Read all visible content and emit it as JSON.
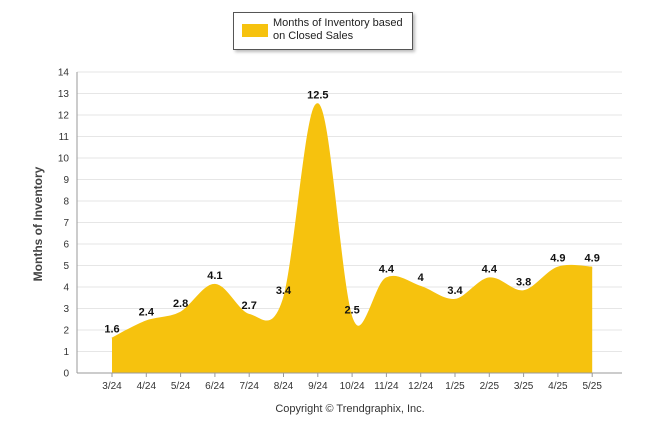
{
  "chart_data": {
    "type": "area",
    "categories": [
      "3/24",
      "4/24",
      "5/24",
      "6/24",
      "7/24",
      "8/24",
      "9/24",
      "10/24",
      "11/24",
      "12/24",
      "1/25",
      "2/25",
      "3/25",
      "4/25",
      "5/25"
    ],
    "series": [
      {
        "name": "Months of Inventory based on Closed Sales",
        "values": [
          1.6,
          2.4,
          2.8,
          4.1,
          2.7,
          3.4,
          12.5,
          2.5,
          4.4,
          4.0,
          3.4,
          4.4,
          3.8,
          4.9,
          4.9
        ]
      }
    ],
    "data_labels": [
      "1.6",
      "2.4",
      "2.8",
      "4.1",
      "2.7",
      "3.4",
      "12.5",
      "2.5",
      "4.4",
      "4",
      "3.4",
      "4.4",
      "3.8",
      "4.9",
      "4.9"
    ],
    "ylabel": "Months of Inventory",
    "xlabel": "",
    "ylim": [
      0,
      14
    ],
    "yticks": [
      "0",
      "1",
      "2",
      "3",
      "4",
      "5",
      "6",
      "7",
      "8",
      "9",
      "10",
      "11",
      "12",
      "13",
      "14"
    ],
    "grid": true,
    "legend_position": "top-center",
    "colors": {
      "area": "#F6C20E",
      "axis": "#999999",
      "grid": "#e6e6e6"
    },
    "legend_label": "Months of Inventory based on Closed Sales"
  },
  "footer": {
    "copyright": "Copyright © Trendgraphix, Inc."
  }
}
